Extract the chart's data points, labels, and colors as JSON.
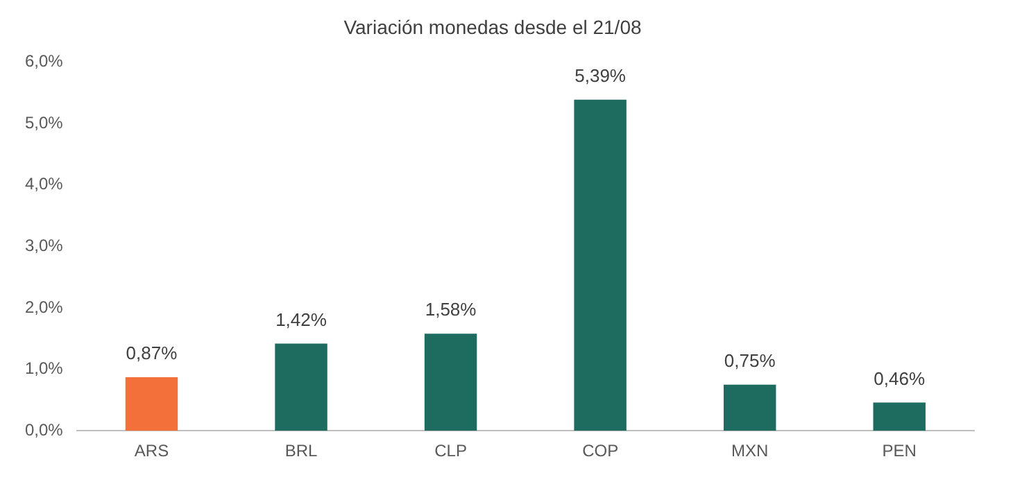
{
  "chart_data": {
    "type": "bar",
    "title": "Variación monedas desde el 21/08",
    "categories": [
      "ARS",
      "BRL",
      "CLP",
      "COP",
      "MXN",
      "PEN"
    ],
    "values": [
      0.87,
      1.42,
      1.58,
      5.39,
      0.75,
      0.46
    ],
    "colors": [
      "#f4703a",
      "#1e6b60",
      "#1e6b60",
      "#1e6b60",
      "#1e6b60",
      "#1e6b60"
    ],
    "value_labels": [
      "0,87%",
      "1,42%",
      "1,58%",
      "5,39%",
      "0,75%",
      "0,46%"
    ],
    "ylim": [
      0,
      6
    ],
    "yticks": [
      {
        "value": 0,
        "label": "0,0%"
      },
      {
        "value": 1,
        "label": "1,0%"
      },
      {
        "value": 2,
        "label": "2,0%"
      },
      {
        "value": 3,
        "label": "3,0%"
      },
      {
        "value": 4,
        "label": "4,0%"
      },
      {
        "value": 5,
        "label": "5,0%"
      },
      {
        "value": 6,
        "label": "6,0%"
      }
    ],
    "grid": false,
    "legend": false
  }
}
